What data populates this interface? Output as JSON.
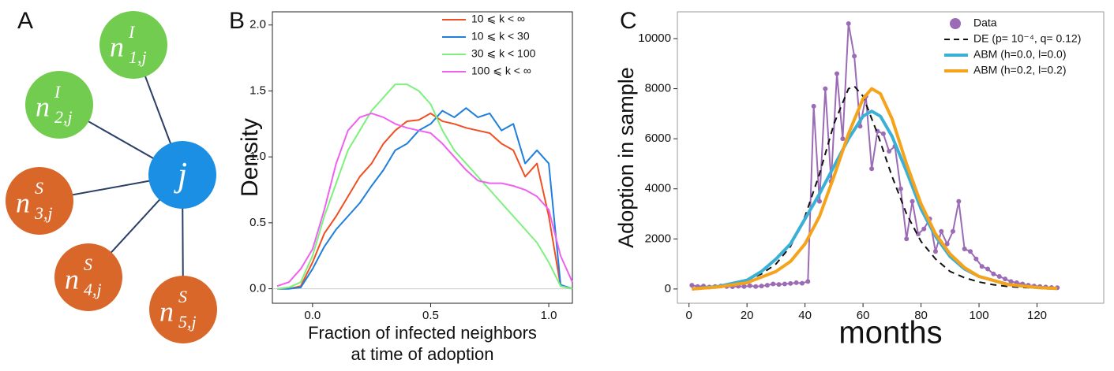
{
  "diagram": {
    "panel": "A",
    "center": "j",
    "nodes": [
      {
        "base": "n",
        "sup": "I",
        "sub": "1,j",
        "color": "#72cc4f"
      },
      {
        "base": "n",
        "sup": "I",
        "sub": "2,j",
        "color": "#72cc4f"
      },
      {
        "base": "n",
        "sup": "S",
        "sub": "3,j",
        "color": "#d9672a"
      },
      {
        "base": "n",
        "sup": "S",
        "sub": "4,j",
        "color": "#d9672a"
      },
      {
        "base": "n",
        "sup": "S",
        "sub": "5,j",
        "color": "#d9672a"
      }
    ],
    "center_color": "#1a8fe3"
  },
  "chart_data": [
    {
      "type": "line",
      "panel": "B",
      "y_label": "Density",
      "x_label": [
        "Fraction of infected neighbors",
        "at time of adoption"
      ],
      "x": [
        -0.15,
        -0.1,
        -0.05,
        0,
        0.05,
        0.1,
        0.15,
        0.2,
        0.25,
        0.3,
        0.35,
        0.4,
        0.45,
        0.5,
        0.55,
        0.6,
        0.65,
        0.7,
        0.75,
        0.8,
        0.85,
        0.9,
        0.95,
        1.0,
        1.05,
        1.1
      ],
      "series": [
        {
          "name": "10 ⩽ k < ∞",
          "color": "#f04e23",
          "values": [
            0,
            0,
            0.02,
            0.2,
            0.42,
            0.55,
            0.7,
            0.85,
            0.95,
            1.1,
            1.2,
            1.27,
            1.28,
            1.33,
            1.27,
            1.25,
            1.22,
            1.2,
            1.18,
            1.1,
            1.05,
            0.85,
            0.95,
            0.55,
            0.02,
            0
          ]
        },
        {
          "name": "10 ⩽ k < 30",
          "color": "#1e7fdc",
          "values": [
            0,
            0,
            0.01,
            0.15,
            0.32,
            0.45,
            0.55,
            0.65,
            0.78,
            0.9,
            1.05,
            1.1,
            1.2,
            1.25,
            1.35,
            1.3,
            1.37,
            1.3,
            1.33,
            1.2,
            1.25,
            0.95,
            1.05,
            0.95,
            0.03,
            0
          ]
        },
        {
          "name": "30 ⩽ k < 100",
          "color": "#7ef07e",
          "values": [
            0,
            0.01,
            0.05,
            0.25,
            0.55,
            0.8,
            1.05,
            1.2,
            1.35,
            1.45,
            1.55,
            1.55,
            1.5,
            1.4,
            1.2,
            1.05,
            0.95,
            0.85,
            0.75,
            0.65,
            0.55,
            0.45,
            0.35,
            0.2,
            0.02,
            0
          ]
        },
        {
          "name": "100 ⩽ k < ∞",
          "color": "#f060f0",
          "values": [
            0.02,
            0.05,
            0.15,
            0.3,
            0.6,
            0.95,
            1.2,
            1.3,
            1.33,
            1.3,
            1.25,
            1.22,
            1.2,
            1.18,
            1.1,
            1.0,
            0.9,
            0.82,
            0.8,
            0.8,
            0.78,
            0.75,
            0.7,
            0.6,
            0.25,
            0.05
          ]
        }
      ],
      "xlim": [
        -0.17,
        1.1
      ],
      "ylim": [
        -0.11,
        2.1
      ],
      "xticks": [
        {
          "value": 0,
          "label": "0.0"
        },
        0.5,
        {
          "value": 1,
          "label": "1.0"
        }
      ],
      "yticks": [
        {
          "value": 0,
          "label": "0.0"
        },
        0.5,
        {
          "value": 1,
          "label": "1.0"
        },
        1.5,
        {
          "value": 2,
          "label": "2.0"
        }
      ]
    },
    {
      "type": "line",
      "panel": "C",
      "y_label": "Adoption in sample",
      "x_label": "months",
      "series": [
        {
          "name": "Data",
          "color": "#9b6bb5",
          "markers": true,
          "x": [
            1,
            3,
            5,
            7,
            9,
            11,
            13,
            15,
            17,
            19,
            21,
            23,
            25,
            27,
            29,
            31,
            33,
            35,
            37,
            39,
            41,
            43,
            45,
            47,
            49,
            51,
            53,
            55,
            57,
            59,
            61,
            63,
            65,
            67,
            69,
            71,
            73,
            75,
            77,
            79,
            81,
            83,
            85,
            87,
            89,
            91,
            93,
            95,
            97,
            99,
            101,
            103,
            105,
            107,
            109,
            111,
            113,
            115,
            117,
            119,
            121,
            123,
            125,
            127
          ],
          "values": [
            150,
            100,
            120,
            80,
            100,
            120,
            100,
            90,
            110,
            100,
            130,
            100,
            120,
            150,
            200,
            180,
            200,
            220,
            250,
            230,
            300,
            7300,
            3500,
            8000,
            4300,
            8600,
            6000,
            10600,
            9300,
            6500,
            7700,
            4800,
            6300,
            6200,
            5500,
            5700,
            4000,
            2000,
            3500,
            2200,
            2400,
            2800,
            1500,
            2300,
            1800,
            2300,
            3500,
            1600,
            1500,
            1200,
            900,
            800,
            600,
            500,
            400,
            300,
            250,
            200,
            150,
            120,
            100,
            80,
            60,
            50
          ]
        },
        {
          "name": "DE (p= 10⁻⁴, q= 0.12)",
          "color": "#111111",
          "dashed": true,
          "x": [
            1,
            5,
            10,
            15,
            20,
            25,
            30,
            35,
            40,
            45,
            50,
            55,
            57,
            60,
            65,
            70,
            75,
            80,
            85,
            90,
            95,
            100,
            105,
            110,
            115,
            120,
            127
          ],
          "values": [
            20,
            50,
            100,
            200,
            350,
            600,
            1000,
            1700,
            2900,
            4600,
            6600,
            8000,
            8100,
            7700,
            6200,
            4500,
            3000,
            1900,
            1200,
            700,
            450,
            280,
            170,
            100,
            60,
            40,
            20
          ]
        },
        {
          "name": "ABM (h=0.0, l=0.0)",
          "color": "#3bb0d6",
          "x": [
            1,
            10,
            20,
            25,
            30,
            35,
            40,
            45,
            50,
            55,
            60,
            63,
            66,
            70,
            75,
            80,
            85,
            90,
            95,
            100,
            110,
            120,
            127
          ],
          "values": [
            0,
            100,
            350,
            700,
            1200,
            1800,
            2800,
            3800,
            4900,
            6000,
            6900,
            7100,
            6900,
            6100,
            4700,
            3200,
            2100,
            1300,
            800,
            500,
            180,
            60,
            20
          ]
        },
        {
          "name": "ABM (h=0.2, l=0.2)",
          "color": "#f5a31a",
          "x": [
            1,
            10,
            20,
            30,
            35,
            40,
            45,
            50,
            55,
            60,
            63,
            66,
            70,
            75,
            80,
            85,
            90,
            95,
            100,
            110,
            120,
            127
          ],
          "values": [
            0,
            80,
            250,
            700,
            1100,
            1800,
            2900,
            4500,
            6200,
            7600,
            8000,
            7800,
            6800,
            5000,
            3400,
            2200,
            1400,
            850,
            500,
            180,
            60,
            20
          ]
        }
      ],
      "xlim": [
        -4,
        143
      ],
      "ylim": [
        -570,
        11070
      ],
      "xticks": [
        0,
        20,
        40,
        60,
        80,
        100,
        120
      ],
      "yticks": [
        0,
        2000,
        4000,
        6000,
        8000,
        10000
      ]
    }
  ]
}
